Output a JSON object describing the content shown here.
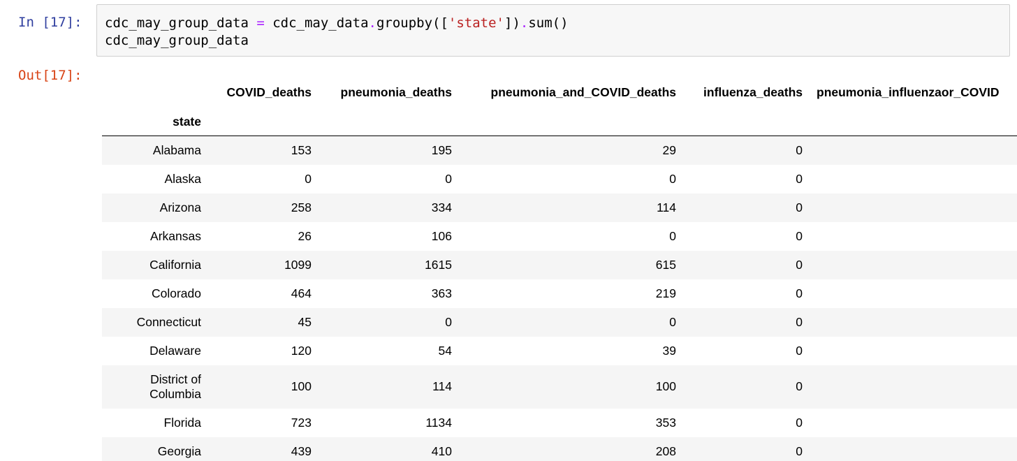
{
  "input": {
    "prompt": "In [17]:",
    "code_lines": [
      [
        {
          "text": "cdc_may_group_data ",
          "kind": "plain"
        },
        {
          "text": "=",
          "kind": "op"
        },
        {
          "text": " cdc_may_data",
          "kind": "plain"
        },
        {
          "text": ".",
          "kind": "op"
        },
        {
          "text": "groupby([",
          "kind": "plain"
        },
        {
          "text": "'state'",
          "kind": "str"
        },
        {
          "text": "])",
          "kind": "plain"
        },
        {
          "text": ".",
          "kind": "op"
        },
        {
          "text": "sum()",
          "kind": "plain"
        }
      ],
      [
        {
          "text": "cdc_may_group_data",
          "kind": "plain"
        }
      ]
    ]
  },
  "output": {
    "prompt": "Out[17]:",
    "table": {
      "columns": [
        "COVID_deaths",
        "pneumonia_deaths",
        "pneumonia_and_COVID_deaths",
        "influenza_deaths",
        "pneumonia_influenzaor_COVID"
      ],
      "index_name": "state",
      "rows": [
        {
          "state": "Alabama",
          "values": [
            "153",
            "195",
            "29",
            "0",
            ""
          ]
        },
        {
          "state": "Alaska",
          "values": [
            "0",
            "0",
            "0",
            "0",
            ""
          ]
        },
        {
          "state": "Arizona",
          "values": [
            "258",
            "334",
            "114",
            "0",
            ""
          ]
        },
        {
          "state": "Arkansas",
          "values": [
            "26",
            "106",
            "0",
            "0",
            ""
          ]
        },
        {
          "state": "California",
          "values": [
            "1099",
            "1615",
            "615",
            "0",
            ""
          ]
        },
        {
          "state": "Colorado",
          "values": [
            "464",
            "363",
            "219",
            "0",
            ""
          ]
        },
        {
          "state": "Connecticut",
          "values": [
            "45",
            "0",
            "0",
            "0",
            ""
          ]
        },
        {
          "state": "Delaware",
          "values": [
            "120",
            "54",
            "39",
            "0",
            ""
          ]
        },
        {
          "state": "District of Columbia",
          "values": [
            "100",
            "114",
            "100",
            "0",
            ""
          ]
        },
        {
          "state": "Florida",
          "values": [
            "723",
            "1134",
            "353",
            "0",
            ""
          ]
        },
        {
          "state": "Georgia",
          "values": [
            "439",
            "410",
            "208",
            "0",
            ""
          ]
        }
      ]
    }
  }
}
